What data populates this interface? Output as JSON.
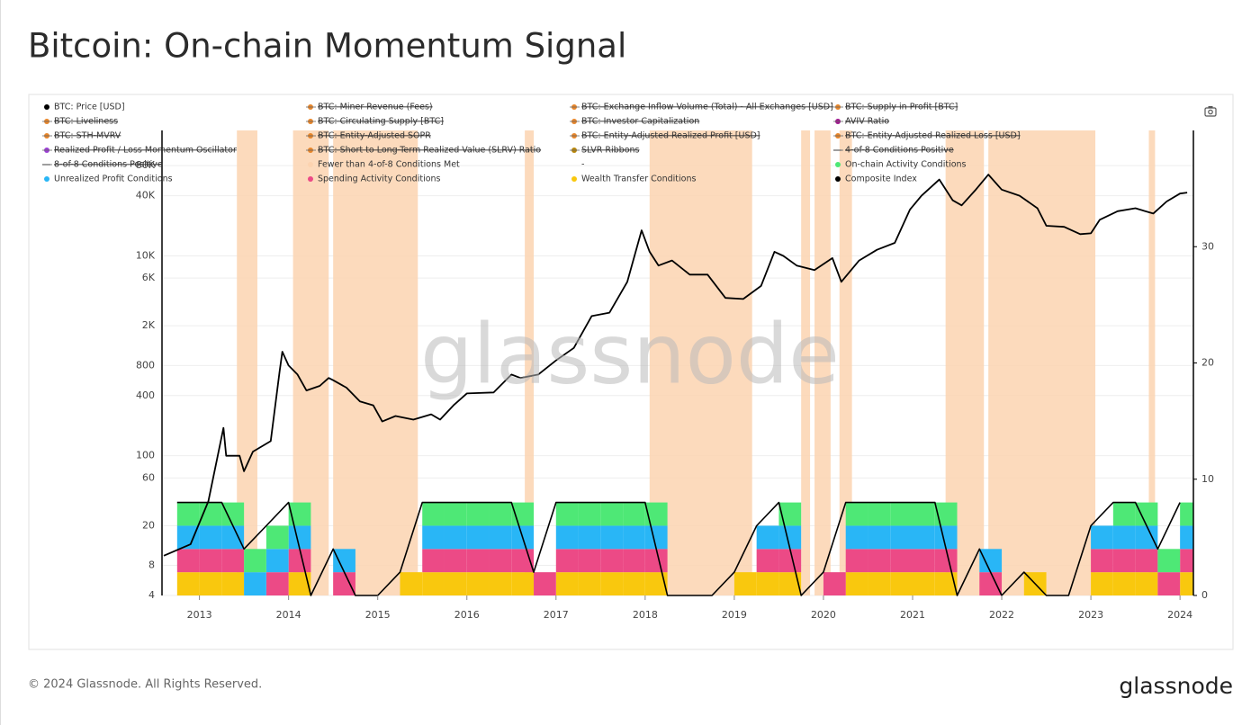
{
  "chart_data": {
    "type": "line",
    "title": "Bitcoin: On-chain Momentum Signal",
    "watermark": "glassnode",
    "copyright": "© 2024 Glassnode. All Rights Reserved.",
    "logo": "glassnode",
    "xlim": [
      2012.58,
      2024.15
    ],
    "xticks": [
      2013,
      2014,
      2015,
      2016,
      2017,
      2018,
      2019,
      2020,
      2021,
      2022,
      2023,
      2024
    ],
    "ylim": [
      4,
      180000
    ],
    "ylog": true,
    "yticks": [
      4,
      8,
      20,
      60,
      100,
      400,
      800,
      {
        "value": 2000,
        "label": "2K"
      },
      {
        "value": 6000,
        "label": "6K"
      },
      {
        "value": 10000,
        "label": "10K"
      },
      {
        "value": 40000,
        "label": "40K"
      },
      {
        "value": 80000,
        "label": "80K"
      }
    ],
    "y2lim": [
      0,
      40
    ],
    "y2ticks": [
      0,
      10,
      20,
      30
    ],
    "grid": true,
    "x": [
      2012.75,
      2013,
      2013.25,
      2013.5,
      2013.75,
      2014,
      2014.25,
      2014.5,
      2014.75,
      2015,
      2015.25,
      2015.5,
      2015.75,
      2016,
      2016.25,
      2016.5,
      2016.75,
      2017,
      2017.25,
      2017.5,
      2017.75,
      2018,
      2018.25,
      2018.5,
      2018.75,
      2019,
      2019.25,
      2019.5,
      2019.75,
      2020,
      2020.25,
      2020.5,
      2020.75,
      2021,
      2021.25,
      2021.5,
      2021.75,
      2022,
      2022.25,
      2022.5,
      2022.75,
      2023,
      2023.25,
      2023.5,
      2023.75,
      2024
    ],
    "series": [
      {
        "name": "BTC: Price [USD]",
        "color": "#000000",
        "axis": "y",
        "x": [
          2012.6,
          2012.9,
          2013.1,
          2013.27,
          2013.3,
          2013.45,
          2013.5,
          2013.6,
          2013.8,
          2013.9,
          2013.93,
          2014.0,
          2014.1,
          2014.2,
          2014.35,
          2014.45,
          2014.5,
          2014.65,
          2014.8,
          2014.95,
          2015.05,
          2015.2,
          2015.4,
          2015.6,
          2015.7,
          2015.85,
          2016.0,
          2016.3,
          2016.5,
          2016.6,
          2016.8,
          2017.0,
          2017.2,
          2017.4,
          2017.6,
          2017.8,
          2017.96,
          2018.05,
          2018.15,
          2018.3,
          2018.5,
          2018.7,
          2018.9,
          2019.1,
          2019.3,
          2019.45,
          2019.55,
          2019.7,
          2019.9,
          2020.1,
          2020.2,
          2020.4,
          2020.6,
          2020.8,
          2020.97,
          2021.1,
          2021.3,
          2021.45,
          2021.55,
          2021.7,
          2021.85,
          2022.0,
          2022.2,
          2022.4,
          2022.5,
          2022.7,
          2022.88,
          2023.0,
          2023.1,
          2023.3,
          2023.5,
          2023.7,
          2023.85,
          2024.0,
          2024.08
        ],
        "values": [
          10,
          13,
          35,
          190,
          100,
          100,
          70,
          110,
          140,
          700,
          1100,
          800,
          650,
          450,
          500,
          600,
          570,
          480,
          350,
          320,
          220,
          250,
          230,
          260,
          230,
          320,
          420,
          430,
          650,
          600,
          650,
          900,
          1200,
          2500,
          2700,
          5500,
          18000,
          11000,
          8000,
          9000,
          6500,
          6500,
          3800,
          3700,
          5000,
          11000,
          10000,
          8000,
          7200,
          9500,
          5500,
          9000,
          11500,
          13500,
          29000,
          40000,
          58000,
          36000,
          32000,
          45000,
          65000,
          46000,
          40000,
          30000,
          20000,
          19500,
          16500,
          16800,
          23000,
          28000,
          30000,
          26500,
          35000,
          42000,
          43000
        ]
      },
      {
        "name": "BTC: Miner Revenue (Fees)",
        "color": "#e8862a",
        "hidden": true
      },
      {
        "name": "BTC: Exchange Inflow Volume (Total) - All Exchanges [USD]",
        "color": "#e8862a",
        "hidden": true
      },
      {
        "name": "BTC: Supply in Profit [BTC]",
        "color": "#e8862a",
        "hidden": true
      },
      {
        "name": "BTC: Liveliness",
        "color": "#e8862a",
        "hidden": true
      },
      {
        "name": "BTC: Circulating Supply [BTC]",
        "color": "#e8862a",
        "hidden": true
      },
      {
        "name": "BTC: Investor Capitalization",
        "color": "#e8862a",
        "hidden": true
      },
      {
        "name": "AVIV Ratio",
        "color": "#a0188f",
        "hidden": true
      },
      {
        "name": "BTC: STH-MVRV",
        "color": "#e8862a",
        "hidden": true
      },
      {
        "name": "BTC: Entity-Adjusted SOPR",
        "color": "#e8862a",
        "hidden": true
      },
      {
        "name": "BTC: Entity-Adjusted Realized Profit [USD]",
        "color": "#e8862a",
        "hidden": true
      },
      {
        "name": "BTC: Entity-Adjusted Realized Loss [USD]",
        "color": "#e8862a",
        "hidden": true
      },
      {
        "name": "Realized Profit / Loss Momentum Oscillator",
        "color": "#9b3fd4",
        "hidden": true
      },
      {
        "name": "BTC: Short to Long-Term Realized Value (SLRV) Ratio",
        "color": "#e8862a",
        "hidden": true
      },
      {
        "name": "SLVR Ribbons",
        "color": "#b8860b",
        "hidden": true
      },
      {
        "name": "4-of-8 Conditions Positive",
        "color": "#999999",
        "hidden": true,
        "marker": "line"
      },
      {
        "name": "8-of-8 Conditions Positive",
        "color": "#999999",
        "hidden": true,
        "marker": "line"
      },
      {
        "name": "Fewer than 4-of-8 Conditions Met",
        "color": "#fcd3b0",
        "periods": [
          [
            2013.42,
            2013.65
          ],
          [
            2014.05,
            2014.45
          ],
          [
            2014.5,
            2015.45
          ],
          [
            2016.65,
            2016.75
          ],
          [
            2018.05,
            2019.2
          ],
          [
            2019.75,
            2019.85
          ],
          [
            2019.9,
            2020.08
          ],
          [
            2020.18,
            2020.32
          ],
          [
            2021.37,
            2021.8
          ],
          [
            2021.85,
            2023.05
          ],
          [
            2023.65,
            2023.72
          ]
        ]
      },
      {
        "name": "-"
      },
      {
        "name": "On-chain Activity Conditions",
        "color": "#4ee876",
        "axis": "y2",
        "stack": 3,
        "values": [
          2,
          2,
          2,
          2,
          2,
          2,
          0,
          0,
          0,
          0,
          0,
          2,
          2,
          2,
          2,
          2,
          0,
          2,
          2,
          2,
          2,
          2,
          0,
          0,
          0,
          0,
          0,
          2,
          0,
          0,
          2,
          2,
          2,
          2,
          2,
          0,
          0,
          0,
          0,
          0,
          0,
          0,
          2,
          2,
          2,
          2
        ]
      },
      {
        "name": "Unrealized Profit Conditions",
        "color": "#29b6f6",
        "axis": "y2",
        "stack": 2,
        "values": [
          2,
          2,
          2,
          2,
          2,
          2,
          0,
          2,
          0,
          0,
          0,
          2,
          2,
          2,
          2,
          2,
          0,
          2,
          2,
          2,
          2,
          2,
          0,
          0,
          0,
          0,
          2,
          2,
          0,
          0,
          2,
          2,
          2,
          2,
          2,
          0,
          2,
          0,
          0,
          0,
          0,
          2,
          2,
          2,
          0,
          2
        ]
      },
      {
        "name": "Spending Activity Conditions",
        "color": "#ec4a86",
        "axis": "y2",
        "stack": 1,
        "values": [
          2,
          2,
          2,
          0,
          2,
          2,
          0,
          2,
          0,
          0,
          0,
          2,
          2,
          2,
          2,
          2,
          2,
          2,
          2,
          2,
          2,
          2,
          0,
          0,
          0,
          0,
          2,
          2,
          0,
          2,
          2,
          2,
          2,
          2,
          2,
          0,
          2,
          0,
          0,
          0,
          0,
          2,
          2,
          2,
          2,
          2
        ]
      },
      {
        "name": "Wealth Transfer Conditions",
        "color": "#f9c80e",
        "axis": "y2",
        "stack": 0,
        "values": [
          2,
          2,
          2,
          0,
          0,
          2,
          0,
          0,
          0,
          0,
          2,
          2,
          2,
          2,
          2,
          2,
          0,
          2,
          2,
          2,
          2,
          2,
          0,
          0,
          0,
          2,
          2,
          2,
          0,
          0,
          2,
          2,
          2,
          2,
          2,
          0,
          0,
          0,
          2,
          0,
          0,
          2,
          2,
          2,
          0,
          2
        ]
      },
      {
        "name": "Composite Index",
        "color": "#000000",
        "axis": "y2",
        "values": [
          8,
          8,
          8,
          4,
          6,
          8,
          0,
          4,
          0,
          0,
          2,
          8,
          8,
          8,
          8,
          8,
          2,
          8,
          8,
          8,
          8,
          8,
          0,
          0,
          0,
          2,
          6,
          8,
          0,
          2,
          8,
          8,
          8,
          8,
          8,
          0,
          4,
          0,
          2,
          0,
          0,
          6,
          8,
          8,
          4,
          8
        ]
      }
    ]
  }
}
